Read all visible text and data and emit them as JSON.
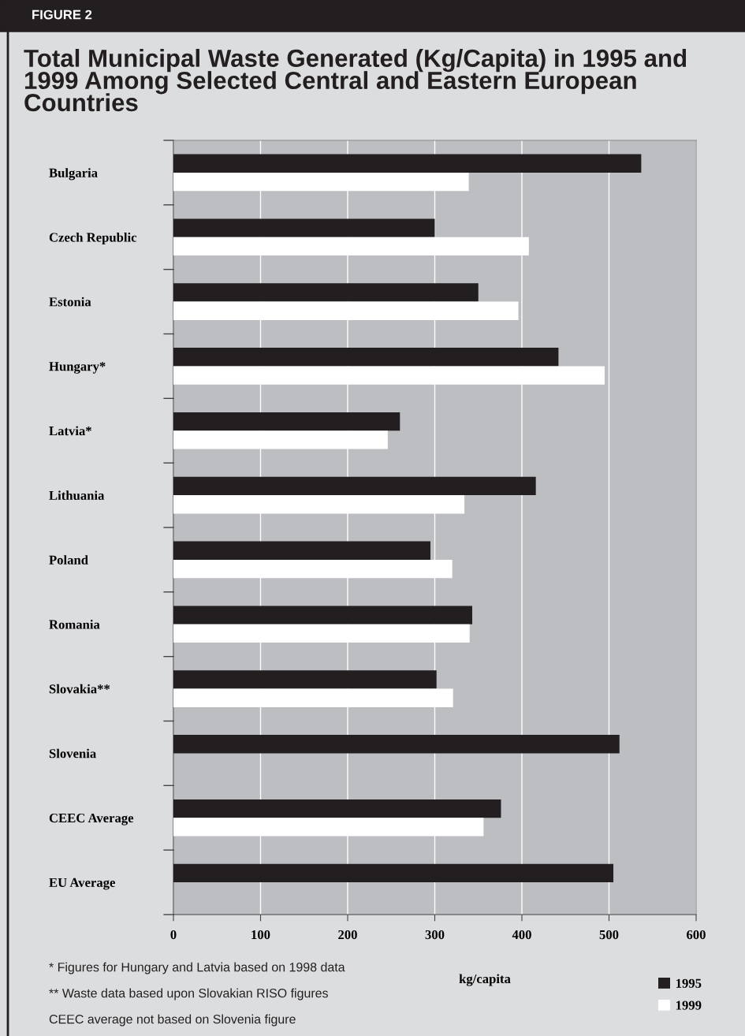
{
  "chart_data": {
    "type": "bar",
    "orientation": "horizontal",
    "title": "Total Municipal Waste Generated (Kg/Capita) in 1995 and 1999 Among Selected Central and Eastern European Countries",
    "categories": [
      "Bulgaria",
      "Czech Republic",
      "Estonia",
      "Hungary*",
      "Latvia*",
      "Lithuania",
      "Poland",
      "Romania",
      "Slovakia**",
      "Slovenia",
      "CEEC Average",
      "EU Average"
    ],
    "series": [
      {
        "name": "1995",
        "color": "#231f20",
        "values": [
          537,
          300,
          350,
          442,
          260,
          416,
          295,
          343,
          302,
          512,
          376,
          505
        ]
      },
      {
        "name": "1999",
        "color": "#ffffff",
        "values": [
          339,
          408,
          396,
          495,
          246,
          334,
          320,
          340,
          321,
          null,
          356,
          null
        ]
      }
    ],
    "xlabel": "kg/capita",
    "xlim": [
      0,
      600
    ],
    "xticks": [
      0,
      100,
      200,
      300,
      400,
      500,
      600
    ],
    "grid": "x",
    "legend": "bottom right",
    "annotations": [
      "FIGURE 2",
      "* Figures for Hungary and Latvia based on 1998 data",
      "** Waste data based upon Slovakian RISO figures",
      "CEEC average not based on Slovenia figure"
    ]
  }
}
